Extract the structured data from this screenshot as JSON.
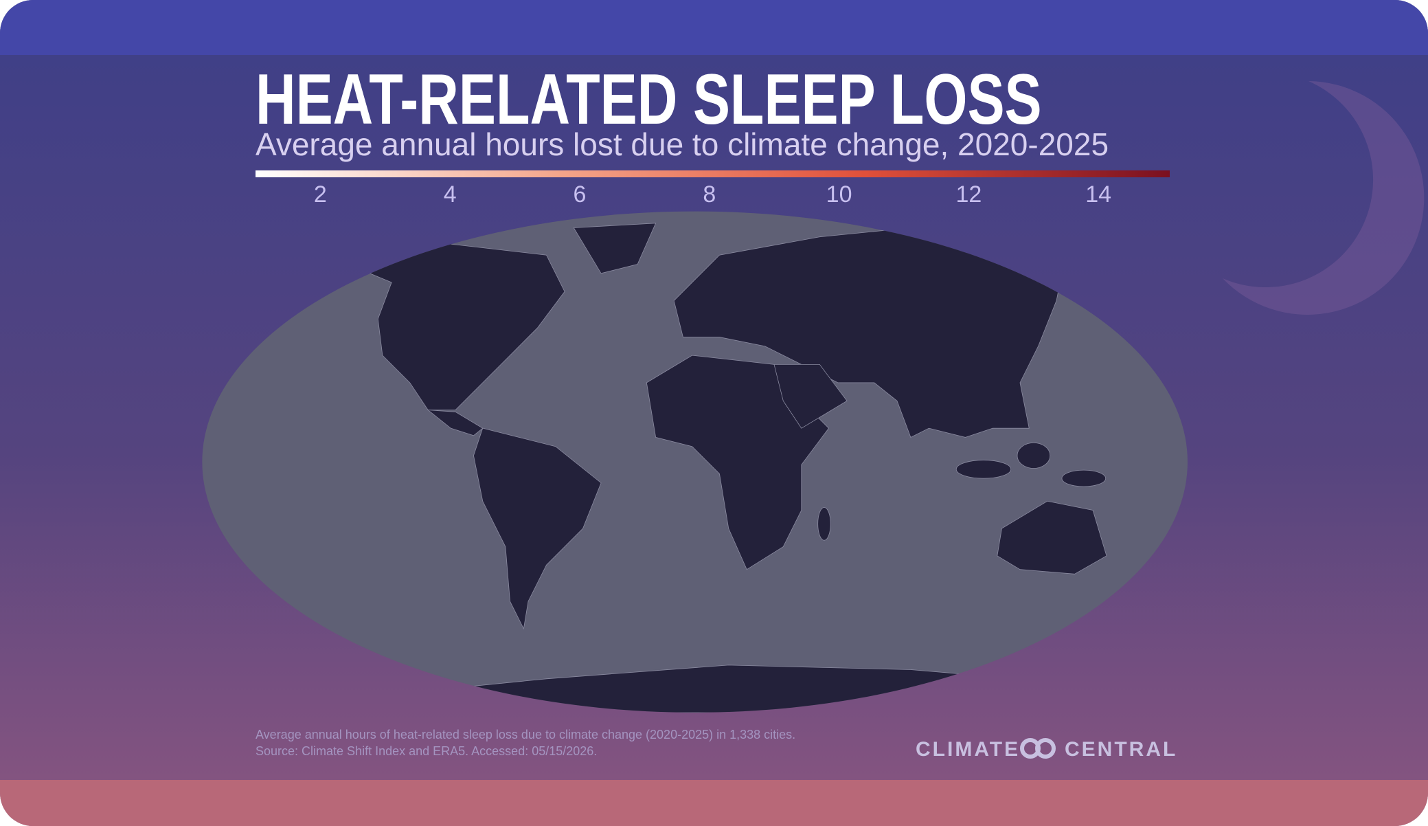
{
  "header": {
    "title": "HEAT-RELATED SLEEP LOSS",
    "subtitle": "Average annual hours lost due to climate change, 2020-2025"
  },
  "legend": {
    "ticks": [
      2,
      4,
      6,
      8,
      10,
      12,
      14
    ],
    "range": [
      1,
      15.1
    ],
    "colors": [
      "#ffffff",
      "#f4a58a",
      "#e0503a",
      "#7a1020"
    ]
  },
  "footer": {
    "note": "Average annual hours of heat-related sleep loss due to climate change (2020-2025) in 1,338 cities.",
    "source": "Source: Climate Shift Index and ERA5. Accessed: 05/15/2026.",
    "logo": [
      "CLIMATE",
      "CENTRAL"
    ]
  }
}
